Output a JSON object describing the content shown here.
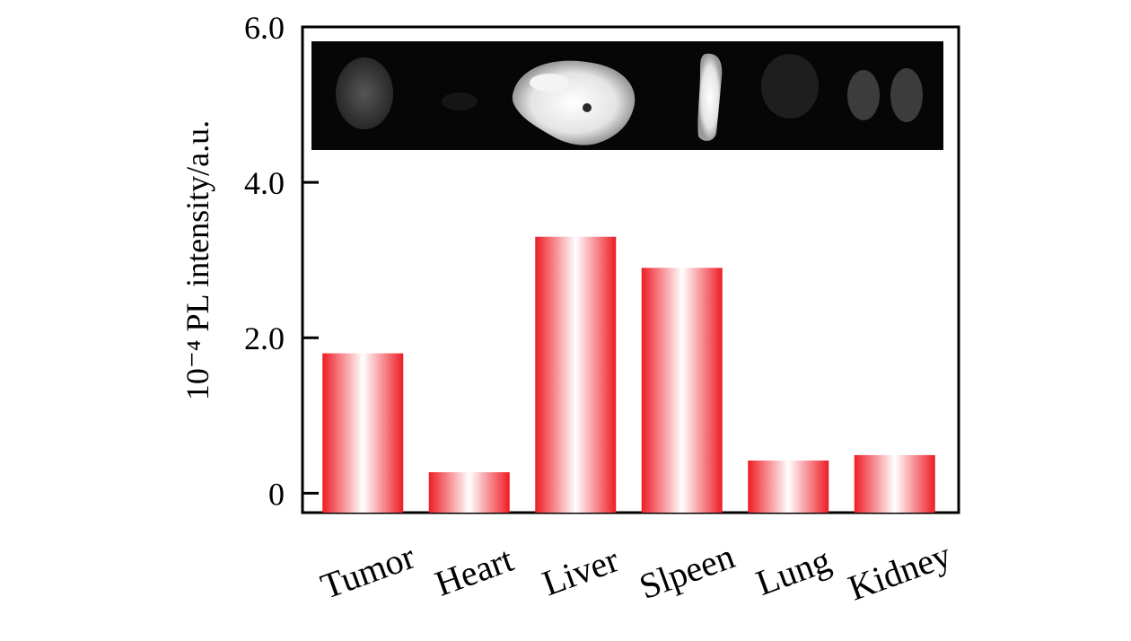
{
  "chart_data": {
    "type": "bar",
    "categories": [
      "Tumor",
      "Heart",
      "Liver",
      "Slpeen",
      "Lung",
      "Kidney"
    ],
    "values": [
      1.8,
      0.27,
      3.3,
      2.9,
      0.42,
      0.49
    ],
    "ylabel": "10⁻⁴ PL intensity/a.u.",
    "xlabel": "",
    "ylim": [
      -0.25,
      6.0
    ],
    "yticks": [
      {
        "value": 0,
        "label": "0"
      },
      {
        "value": 2,
        "label": "2.0"
      },
      {
        "value": 4,
        "label": "4.0"
      },
      {
        "value": 6,
        "label": "6.0"
      }
    ],
    "bar_color": "#ee1c25",
    "grid": false,
    "legend": "none",
    "inset_image": "ex vivo fluorescence image of organs: tumor, heart, liver, spleen, lung, kidney"
  }
}
